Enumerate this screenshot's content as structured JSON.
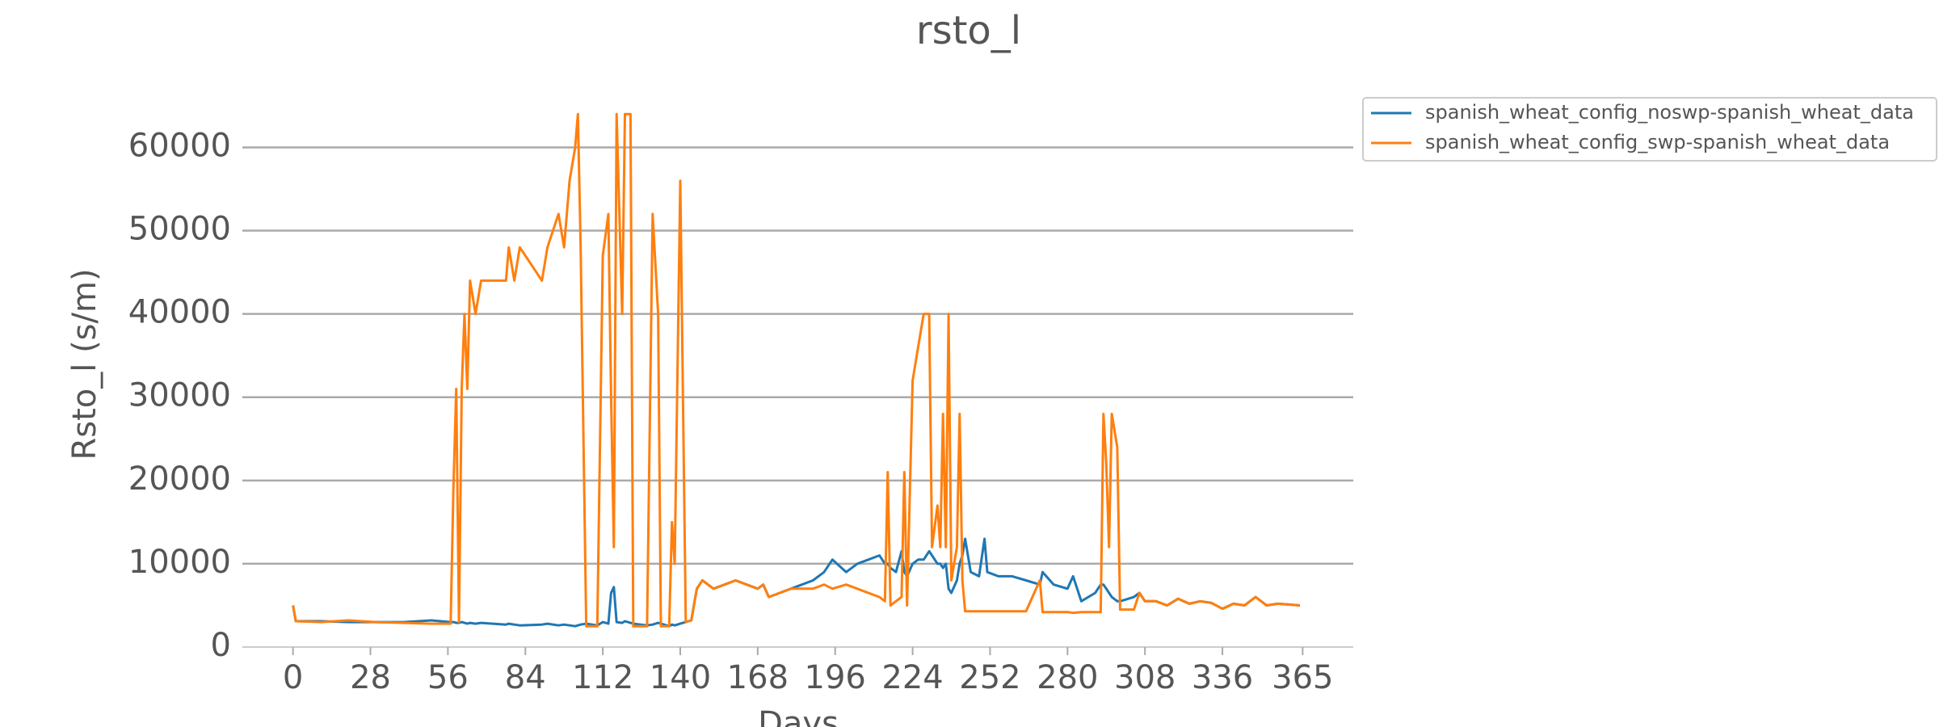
{
  "chart_data": {
    "type": "line",
    "title": "rsto_l",
    "xlabel": "Days",
    "ylabel": "Rsto_l (s/m)",
    "x": [
      0,
      1,
      10,
      20,
      30,
      40,
      50,
      57,
      58,
      59,
      60,
      61,
      62,
      63,
      64,
      66,
      68,
      77,
      78,
      80,
      82,
      90,
      92,
      96,
      98,
      100,
      102,
      103,
      104,
      106,
      110,
      112,
      114,
      115,
      116,
      117,
      119,
      120,
      122,
      123,
      128,
      130,
      132,
      133,
      136,
      137,
      138,
      140,
      142,
      144,
      146,
      148,
      152,
      156,
      160,
      164,
      168,
      170,
      172,
      176,
      180,
      184,
      188,
      192,
      195,
      200,
      204,
      208,
      212,
      214,
      215,
      216,
      218,
      220,
      221,
      222,
      224,
      226,
      228,
      230,
      231,
      233,
      234,
      235,
      236,
      237,
      238,
      240,
      241,
      242,
      243,
      245,
      248,
      250,
      251,
      255,
      260,
      265,
      270,
      271,
      275,
      280,
      282,
      285,
      290,
      292,
      293,
      294,
      295,
      296,
      298,
      299,
      304,
      306,
      308,
      312,
      316,
      320,
      324,
      328,
      332,
      336,
      340,
      344,
      348,
      352,
      356,
      360,
      364
    ],
    "series": [
      {
        "name": "spanish_wheat_config_noswp-spanish_wheat_data",
        "color": "#1f77b4",
        "values": [
          5000,
          3100,
          3100,
          3000,
          3000,
          3000,
          3200,
          3000,
          3000,
          2900,
          2900,
          3000,
          2900,
          2800,
          2900,
          2800,
          2900,
          2700,
          2800,
          2700,
          2600,
          2700,
          2800,
          2600,
          2700,
          2600,
          2500,
          2600,
          2700,
          2800,
          2600,
          3000,
          2800,
          6500,
          7200,
          3000,
          2900,
          3100,
          2900,
          2800,
          2600,
          2700,
          2900,
          2800,
          2500,
          2700,
          2600,
          2800,
          3000,
          3200,
          7000,
          8000,
          7000,
          7500,
          8000,
          7500,
          7000,
          7500,
          6000,
          6500,
          7000,
          7500,
          8000,
          9000,
          10500,
          9000,
          10000,
          10500,
          11000,
          10000,
          10000,
          9500,
          9000,
          11500,
          9000,
          8500,
          10000,
          10500,
          10500,
          11500,
          11000,
          10000,
          10000,
          9500,
          10000,
          7000,
          6500,
          8000,
          10000,
          11000,
          13000,
          9000,
          8500,
          13000,
          9000,
          8500,
          8500,
          8000,
          7500,
          9000,
          7500,
          7000,
          8500,
          5500,
          6500,
          7500,
          7500,
          7000,
          6500,
          6000,
          5500,
          5500,
          6000,
          6500,
          5500,
          5500,
          5000,
          5800,
          5200,
          5500,
          5300,
          4600,
          5200,
          5000,
          6000,
          5000,
          5200,
          5100,
          5000
        ]
      },
      {
        "name": "spanish_wheat_config_swp-spanish_wheat_data",
        "color": "#ff7f0e",
        "values": [
          5000,
          3100,
          3000,
          3200,
          3000,
          2900,
          2800,
          2800,
          19000,
          31000,
          3000,
          31000,
          40000,
          31000,
          44000,
          40000,
          44000,
          44000,
          48000,
          44000,
          48000,
          44000,
          48000,
          52000,
          48000,
          56000,
          60000,
          64000,
          48000,
          2500,
          2500,
          47000,
          52000,
          30000,
          12000,
          64000,
          40000,
          64000,
          64000,
          2500,
          2500,
          52000,
          40000,
          2500,
          2500,
          15000,
          10000,
          56000,
          3000,
          3200,
          7000,
          8000,
          7000,
          7500,
          8000,
          7500,
          7000,
          7500,
          6000,
          6500,
          7000,
          7000,
          7000,
          7500,
          7000,
          7500,
          7000,
          6500,
          6000,
          5500,
          21000,
          5000,
          5500,
          6000,
          21000,
          5000,
          32000,
          36000,
          40000,
          40000,
          12000,
          17000,
          12000,
          28000,
          12000,
          40000,
          8000,
          12000,
          28000,
          8000,
          4300,
          4300,
          4300,
          4300,
          4300,
          4300,
          4300,
          4300,
          8000,
          4200,
          4200,
          4200,
          4100,
          4200,
          4200,
          4200,
          28000,
          22000,
          12000,
          28000,
          24000,
          4500,
          4500,
          6500,
          5500,
          5500,
          5000,
          5800,
          5200,
          5500,
          5300,
          4600,
          5200,
          5000,
          6000,
          5000,
          5200,
          5100,
          5000
        ]
      }
    ],
    "xlim": [
      -18.3,
      383.3
    ],
    "ylim": [
      0,
      68000
    ],
    "xticks": [
      0,
      28,
      56,
      84,
      112,
      140,
      168,
      196,
      224,
      252,
      280,
      308,
      336,
      365
    ],
    "yticks": [
      0,
      10000,
      20000,
      30000,
      40000,
      50000,
      60000
    ],
    "grid": true,
    "legend": "upper right outside"
  }
}
